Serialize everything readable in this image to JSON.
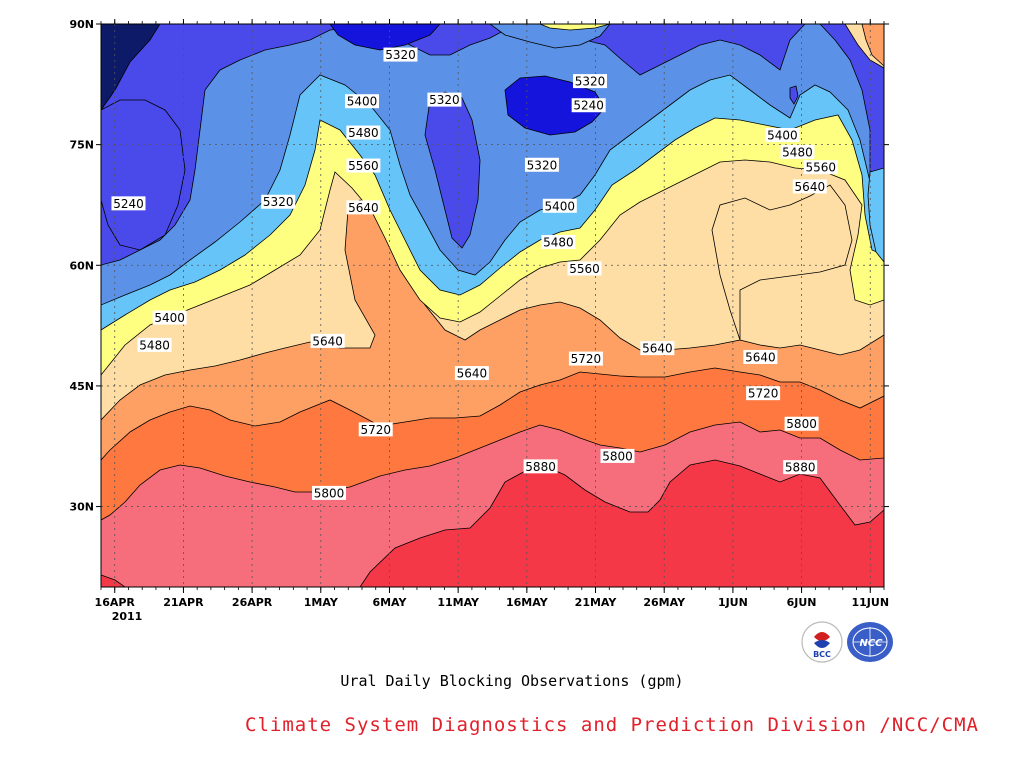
{
  "chart_data": {
    "type": "contour-filled",
    "title": "Ural Daily Blocking Observations (gpm)",
    "x_ticks": [
      "16APR",
      "21APR",
      "26APR",
      "1MAY",
      "6MAY",
      "11MAY",
      "16MAY",
      "21MAY",
      "26MAY",
      "1JUN",
      "6JUN",
      "11JUN"
    ],
    "x_year_label": "2011",
    "y_ticks": [
      "90N",
      "75N",
      "60N",
      "45N",
      "30N"
    ],
    "y_tick_values": [
      90,
      75,
      60,
      45,
      30
    ],
    "y_range": [
      20,
      90
    ],
    "x_range_days": [
      0,
      57
    ],
    "contour_levels": [
      5240,
      5320,
      5400,
      5480,
      5560,
      5640,
      5720,
      5800,
      5880
    ],
    "level_colors": [
      "#0c1a68",
      "#1414dc",
      "#4a4aea",
      "#5b91e6",
      "#66c4f8",
      "#fefe80",
      "#fedea4",
      "#fea064",
      "#fe7840",
      "#f66e7c",
      "#f43848"
    ],
    "contour_labels": [
      {
        "text": "5320",
        "day": 21.8,
        "lat": 86.2
      },
      {
        "text": "5320",
        "day": 25.0,
        "lat": 80.6
      },
      {
        "text": "5320",
        "day": 35.6,
        "lat": 82.9
      },
      {
        "text": "5240",
        "day": 35.5,
        "lat": 79.9
      },
      {
        "text": "5400",
        "day": 19.0,
        "lat": 80.4
      },
      {
        "text": "5480",
        "day": 19.1,
        "lat": 76.5
      },
      {
        "text": "5560",
        "day": 19.1,
        "lat": 72.4
      },
      {
        "text": "5640",
        "day": 19.1,
        "lat": 67.2
      },
      {
        "text": "5240",
        "day": 2.0,
        "lat": 67.7
      },
      {
        "text": "5320",
        "day": 12.9,
        "lat": 67.9
      },
      {
        "text": "5320",
        "day": 32.1,
        "lat": 72.5
      },
      {
        "text": "5400",
        "day": 33.4,
        "lat": 67.4
      },
      {
        "text": "5480",
        "day": 33.3,
        "lat": 62.9
      },
      {
        "text": "5560",
        "day": 35.2,
        "lat": 59.6
      },
      {
        "text": "5400",
        "day": 5.0,
        "lat": 53.5
      },
      {
        "text": "5480",
        "day": 3.9,
        "lat": 50.1
      },
      {
        "text": "5640",
        "day": 16.5,
        "lat": 50.6
      },
      {
        "text": "5640",
        "day": 27.0,
        "lat": 46.6
      },
      {
        "text": "5720",
        "day": 35.3,
        "lat": 48.4
      },
      {
        "text": "5640",
        "day": 40.5,
        "lat": 49.7
      },
      {
        "text": "5640",
        "day": 48.0,
        "lat": 48.6
      },
      {
        "text": "5720",
        "day": 48.2,
        "lat": 44.1
      },
      {
        "text": "5800",
        "day": 51.0,
        "lat": 40.3
      },
      {
        "text": "5880",
        "day": 50.9,
        "lat": 34.9
      },
      {
        "text": "5720",
        "day": 20.0,
        "lat": 39.6
      },
      {
        "text": "5880",
        "day": 32.0,
        "lat": 35.0
      },
      {
        "text": "5800",
        "day": 37.6,
        "lat": 36.3
      },
      {
        "text": "5800",
        "day": 16.6,
        "lat": 31.7
      },
      {
        "text": "5400",
        "day": 49.6,
        "lat": 76.2
      },
      {
        "text": "5480",
        "day": 50.7,
        "lat": 74.1
      },
      {
        "text": "5560",
        "day": 52.4,
        "lat": 72.2
      },
      {
        "text": "5640",
        "day": 51.6,
        "lat": 69.8
      }
    ]
  },
  "footer": {
    "credit": "Climate System Diagnostics and Prediction Division /NCC/CMA",
    "logo_left": "BCC",
    "logo_right": "NCC"
  }
}
